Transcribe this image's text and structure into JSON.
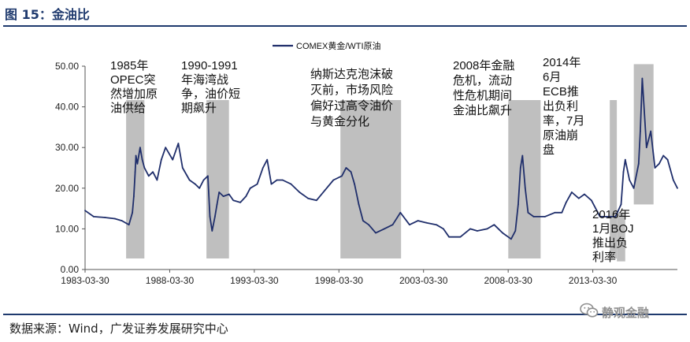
{
  "figure": {
    "title": "图 15：金油比",
    "source": "数据来源：Wind，广发证券发展研究中心",
    "watermark": "静观金融",
    "watermark_icon": "wechat-icon"
  },
  "colors": {
    "line": "#1f2e6b",
    "shade": "#bfbfbf",
    "title": "#1f3a6e"
  },
  "chart_data": {
    "type": "line",
    "legend": {
      "label": "COMEX黄金/WTI原油",
      "position": "top-center"
    },
    "grid": false,
    "ylim": [
      0,
      50
    ],
    "yticks": [
      "0.00",
      "10.00",
      "20.00",
      "30.00",
      "40.00",
      "50.00"
    ],
    "xlim": [
      "1983-03-30",
      "2018-03-30"
    ],
    "xticks": [
      "1983-03-30",
      "1988-03-30",
      "1993-03-30",
      "1998-03-30",
      "2003-03-30",
      "2008-03-30",
      "2013-03-30"
    ],
    "series": [
      {
        "name": "COMEX黄金/WTI原油",
        "x": [
          "1983-03-30",
          "1983-10-01",
          "1984-06-01",
          "1985-01-01",
          "1985-06-01",
          "1985-11-01",
          "1986-01-15",
          "1986-02-15",
          "1986-03-15",
          "1986-04-01",
          "1986-05-01",
          "1986-07-01",
          "1986-08-15",
          "1986-10-01",
          "1987-01-01",
          "1987-04-01",
          "1987-07-01",
          "1987-10-01",
          "1988-01-01",
          "1988-06-01",
          "1988-10-01",
          "1989-01-01",
          "1989-06-01",
          "1989-10-01",
          "1990-01-01",
          "1990-04-01",
          "1990-07-01",
          "1990-08-15",
          "1990-10-01",
          "1990-12-01",
          "1991-01-15",
          "1991-03-01",
          "1991-06-01",
          "1991-10-01",
          "1992-01-01",
          "1992-06-01",
          "1992-10-01",
          "1993-01-01",
          "1993-06-01",
          "1993-10-01",
          "1994-01-01",
          "1994-04-01",
          "1994-08-01",
          "1994-12-01",
          "1995-06-01",
          "1995-12-01",
          "1996-06-01",
          "1996-12-01",
          "1997-06-01",
          "1997-12-01",
          "1998-06-01",
          "1998-09-01",
          "1998-12-15",
          "1999-03-01",
          "1999-06-01",
          "1999-09-01",
          "2000-01-01",
          "2000-06-01",
          "2000-12-01",
          "2001-06-01",
          "2001-11-15",
          "2002-06-01",
          "2002-12-01",
          "2003-06-01",
          "2004-01-01",
          "2004-06-01",
          "2004-10-01",
          "2005-06-01",
          "2006-01-01",
          "2006-06-01",
          "2007-01-01",
          "2007-06-01",
          "2007-12-01",
          "2008-06-01",
          "2008-09-01",
          "2008-11-01",
          "2008-12-20",
          "2009-02-01",
          "2009-04-01",
          "2009-06-01",
          "2009-10-01",
          "2010-06-01",
          "2011-01-01",
          "2011-06-01",
          "2011-09-01",
          "2012-01-01",
          "2012-06-01",
          "2012-10-01",
          "2013-03-01",
          "2013-09-01",
          "2014-03-01",
          "2014-08-01",
          "2014-12-01",
          "2015-01-20",
          "2015-03-01",
          "2015-06-01",
          "2015-09-01",
          "2015-12-15",
          "2016-01-20",
          "2016-03-01",
          "2016-06-01",
          "2016-09-01",
          "2016-12-01",
          "2017-03-01",
          "2017-06-01",
          "2017-09-01",
          "2018-01-01",
          "2018-03-30"
        ],
        "values": [
          14.5,
          13.0,
          12.8,
          12.5,
          12.0,
          11.0,
          14.0,
          18.0,
          24.0,
          28.0,
          26.0,
          30.0,
          27.0,
          25.0,
          23.0,
          24.0,
          22.0,
          27.0,
          30.0,
          27.0,
          31.0,
          25.0,
          22.0,
          21.0,
          20.0,
          22.0,
          23.0,
          13.0,
          9.5,
          13.0,
          16.0,
          19.0,
          18.0,
          18.5,
          17.0,
          16.5,
          18.0,
          20.0,
          21.0,
          25.0,
          27.0,
          21.0,
          22.0,
          22.0,
          21.0,
          19.0,
          17.5,
          17.0,
          19.5,
          22.0,
          23.0,
          25.0,
          24.0,
          21.0,
          16.0,
          12.0,
          11.0,
          9.0,
          10.0,
          11.0,
          14.0,
          11.0,
          12.0,
          11.5,
          11.0,
          10.0,
          8.0,
          8.0,
          10.0,
          9.5,
          10.0,
          11.0,
          9.0,
          7.5,
          9.5,
          16.0,
          25.0,
          28.0,
          20.0,
          14.0,
          13.0,
          13.0,
          14.0,
          14.0,
          16.5,
          19.0,
          17.5,
          18.5,
          17.0,
          13.0,
          13.0,
          13.0,
          16.0,
          24.0,
          27.0,
          22.0,
          20.0,
          26.0,
          34.0,
          47.0,
          30.0,
          34.0,
          25.0,
          26.0,
          28.0,
          27.0,
          22.0,
          20.0
        ]
      }
    ],
    "shaded_periods": [
      {
        "start": "1985-09-01",
        "end": "1986-09-30"
      },
      {
        "start": "1990-06-01",
        "end": "1991-09-30"
      },
      {
        "start": "1998-05-01",
        "end": "2001-11-30"
      },
      {
        "start": "2008-04-01",
        "end": "2010-02-28"
      },
      {
        "start": "2014-04-01",
        "end": "2014-08-31"
      },
      {
        "start": "2014-09-01",
        "end": "2015-02-28",
        "ylow": 2,
        "yhigh": 14
      },
      {
        "start": "2015-09-01",
        "end": "2016-10-31",
        "ylow": 16,
        "yhigh": 50.5
      }
    ],
    "annotations": [
      {
        "lines": [
          "1985年",
          "OPEC突",
          "然增加原",
          "油供给"
        ]
      },
      {
        "lines": [
          "1990-1991",
          "年海湾战",
          "争，油价短",
          "期飙升"
        ]
      },
      {
        "lines": [
          "纳斯达克泡沫破",
          "灭前，市场风险",
          "偏好过高令油价",
          "与黄金分化"
        ]
      },
      {
        "lines": [
          "2008年金融",
          "危机，流动",
          "性危机期间",
          "金油比飙升"
        ]
      },
      {
        "lines": [
          "2014年",
          "6月",
          "ECB推",
          "出负利",
          "率，7月",
          "原油崩",
          "盘"
        ]
      },
      {
        "lines": [
          "2016年",
          "1月BOJ",
          "推出负",
          "利率"
        ]
      }
    ]
  }
}
